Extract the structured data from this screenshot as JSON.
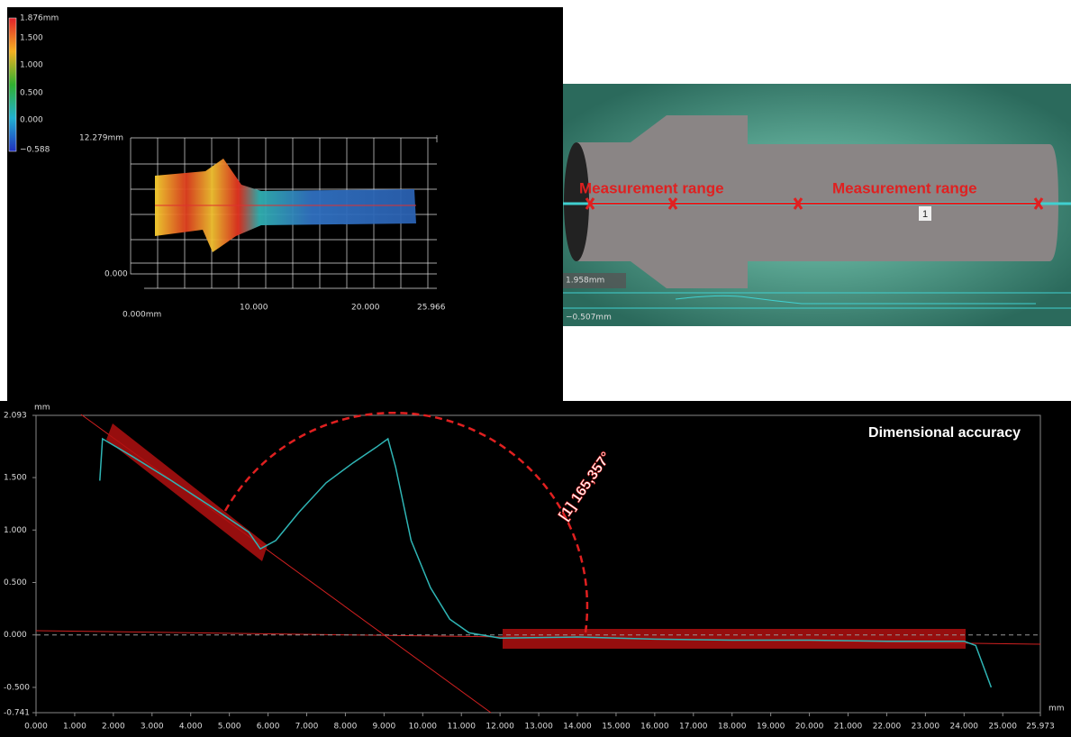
{
  "height_map": {
    "colorbar_labels": [
      "1.876mm",
      "1.500",
      "1.000",
      "0.500",
      "0.000",
      "−0.588"
    ],
    "y_labels": [
      "12.279mm",
      "0.000"
    ],
    "x_labels": [
      "0.000mm",
      "10.000",
      "20.000",
      "25.966"
    ]
  },
  "camera_view": {
    "range_labels": [
      "Measurement range",
      "Measurement range"
    ],
    "marker": "1",
    "scale_labels": [
      "1.958mm",
      "−0.507mm"
    ]
  },
  "chart_data": {
    "type": "line",
    "title": "Dimensional accuracy",
    "annotation": "[1] 165,357°",
    "y_unit": "mm",
    "x_unit": "mm",
    "color": "#2fb5b5",
    "x": [
      1.65,
      1.72,
      2.5,
      3.5,
      4.5,
      5.5,
      5.8,
      6.2,
      6.8,
      7.5,
      8.2,
      8.8,
      9.1,
      9.3,
      9.7,
      10.2,
      10.7,
      11.2,
      12,
      14,
      16,
      18,
      20,
      22,
      24,
      24.3,
      24.5,
      24.7
    ],
    "values": [
      1.47,
      1.87,
      1.7,
      1.47,
      1.23,
      0.98,
      0.82,
      0.9,
      1.17,
      1.45,
      1.64,
      1.79,
      1.87,
      1.6,
      0.9,
      0.45,
      0.15,
      0.02,
      -0.03,
      -0.02,
      -0.04,
      -0.05,
      -0.05,
      -0.06,
      -0.06,
      -0.1,
      -0.3,
      -0.5
    ],
    "xlim": [
      0,
      25.973
    ],
    "ylim": [
      -0.741,
      2.093
    ],
    "xticks": [
      {
        "value": 0,
        "label": "0.000"
      },
      {
        "value": 1,
        "label": "1.000"
      },
      {
        "value": 2,
        "label": "2.000"
      },
      {
        "value": 3,
        "label": "3.000"
      },
      {
        "value": 4,
        "label": "4.000"
      },
      {
        "value": 5,
        "label": "5.000"
      },
      {
        "value": 6,
        "label": "6.000"
      },
      {
        "value": 7,
        "label": "7.000"
      },
      {
        "value": 8,
        "label": "8.000"
      },
      {
        "value": 9,
        "label": "9.000"
      },
      {
        "value": 10,
        "label": "10.000"
      },
      {
        "value": 11,
        "label": "11.000"
      },
      {
        "value": 12,
        "label": "12.000"
      },
      {
        "value": 13,
        "label": "13.000"
      },
      {
        "value": 14,
        "label": "14.000"
      },
      {
        "value": 15,
        "label": "15.000"
      },
      {
        "value": 16,
        "label": "16.000"
      },
      {
        "value": 17,
        "label": "17.000"
      },
      {
        "value": 18,
        "label": "18.000"
      },
      {
        "value": 19,
        "label": "19.000"
      },
      {
        "value": 20,
        "label": "20.000"
      },
      {
        "value": 21,
        "label": "21.000"
      },
      {
        "value": 22,
        "label": "22.000"
      },
      {
        "value": 23,
        "label": "23.000"
      },
      {
        "value": 24,
        "label": "24.000"
      },
      {
        "value": 25,
        "label": "25.000"
      },
      25.973
    ],
    "yticks": [
      2.093,
      {
        "value": 1.5,
        "label": "1.500"
      },
      {
        "value": 1,
        "label": "1.000"
      },
      {
        "value": 0.5,
        "label": "0.500"
      },
      {
        "value": 0,
        "label": "0.000"
      },
      {
        "value": -0.5,
        "label": "-0.500"
      },
      -0.741
    ]
  }
}
